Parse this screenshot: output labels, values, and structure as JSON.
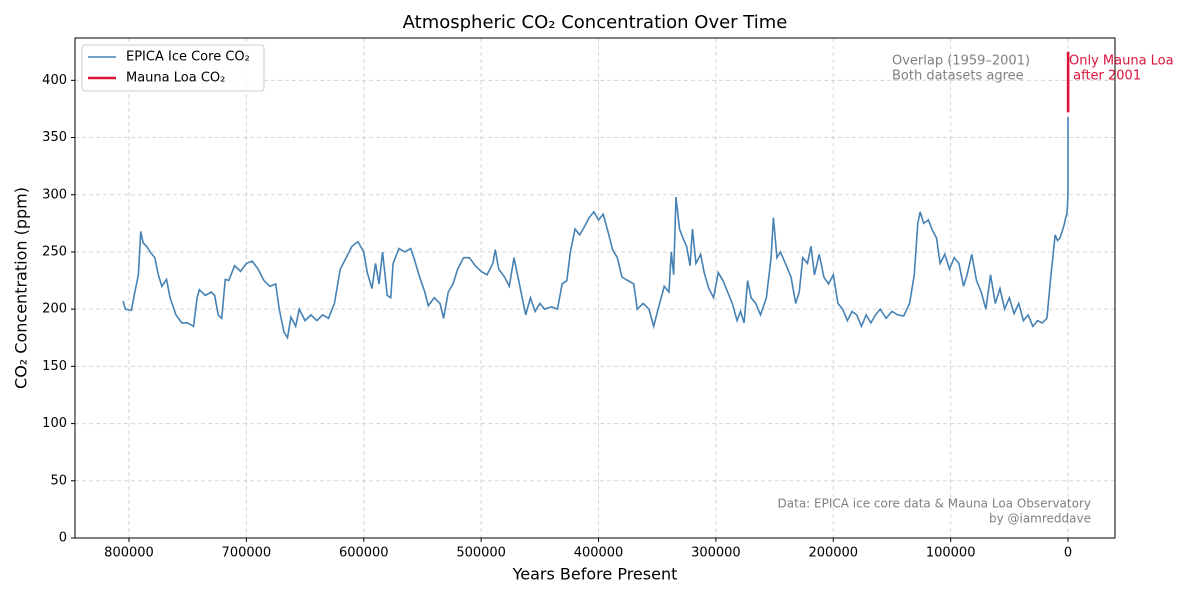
{
  "chart_data": {
    "type": "line",
    "title": "Atmospheric CO₂ Concentration Over Time",
    "x_label": "Years Before Present",
    "y_label": "CO₂ Concentration (ppm)",
    "xlim": [
      846000,
      -40000
    ],
    "ylim": [
      0,
      437
    ],
    "xticks": [
      800000,
      700000,
      600000,
      500000,
      400000,
      300000,
      200000,
      100000,
      0
    ],
    "yticks": [
      0,
      50,
      100,
      150,
      200,
      250,
      300,
      350,
      400
    ],
    "grid": true,
    "legend": "upper left",
    "series": [
      {
        "name": "EPICA Ice Core CO₂",
        "color": "#4682b4",
        "x": [
          805000,
          803000,
          798000,
          795000,
          792000,
          790000,
          788000,
          785000,
          782000,
          778000,
          775000,
          772000,
          768000,
          765000,
          760000,
          755000,
          750000,
          745000,
          742000,
          740000,
          735000,
          730000,
          727000,
          724000,
          721000,
          718000,
          715000,
          710000,
          705000,
          700000,
          695000,
          690000,
          685000,
          680000,
          675000,
          672000,
          668000,
          665000,
          662000,
          658000,
          655000,
          650000,
          645000,
          640000,
          635000,
          630000,
          625000,
          620000,
          615000,
          610000,
          605000,
          600000,
          597000,
          593000,
          590000,
          587000,
          584000,
          580000,
          577000,
          575000,
          570000,
          565000,
          560000,
          557000,
          553000,
          548000,
          545000,
          540000,
          535000,
          532000,
          528000,
          524000,
          520000,
          515000,
          510000,
          505000,
          500000,
          495000,
          490000,
          488000,
          485000,
          480000,
          476000,
          472000,
          468000,
          465000,
          462000,
          458000,
          454000,
          450000,
          446000,
          440000,
          435000,
          431000,
          427000,
          424000,
          420000,
          416000,
          412000,
          408000,
          404000,
          400000,
          396000,
          392000,
          388000,
          384000,
          380000,
          375000,
          370000,
          367000,
          362000,
          357000,
          353000,
          348000,
          344000,
          340000,
          338000,
          336000,
          334000,
          331000,
          328000,
          325000,
          322000,
          320000,
          317000,
          313000,
          310000,
          306000,
          302000,
          298000,
          294000,
          290000,
          286000,
          282000,
          279000,
          276000,
          273000,
          270000,
          266000,
          262000,
          257000,
          253000,
          251000,
          248000,
          245000,
          240000,
          236000,
          232000,
          229000,
          226000,
          222000,
          219000,
          216000,
          212000,
          208000,
          204000,
          200000,
          196000,
          192000,
          188000,
          184000,
          180000,
          176000,
          172000,
          168000,
          164000,
          160000,
          155000,
          150000,
          145000,
          140000,
          135000,
          131000,
          128000,
          126000,
          123000,
          119000,
          116000,
          112000,
          109000,
          105000,
          101000,
          97000,
          93000,
          89000,
          86000,
          82000,
          78000,
          74000,
          70000,
          66000,
          62000,
          58000,
          54000,
          50000,
          46000,
          42000,
          38000,
          34000,
          30000,
          26000,
          22000,
          18000,
          15000,
          13000,
          11000,
          9000,
          7000,
          5000,
          3000,
          2000,
          1000,
          500,
          100,
          50,
          20,
          0
        ],
        "values": [
          207,
          200,
          199,
          215,
          230,
          268,
          258,
          255,
          250,
          245,
          230,
          220,
          226,
          210,
          195,
          188,
          188,
          185,
          210,
          217,
          212,
          215,
          212,
          195,
          192,
          226,
          225,
          238,
          233,
          240,
          242,
          235,
          225,
          220,
          222,
          200,
          180,
          175,
          193,
          185,
          200,
          190,
          195,
          190,
          195,
          192,
          205,
          235,
          245,
          255,
          259,
          250,
          232,
          218,
          240,
          222,
          250,
          212,
          210,
          240,
          253,
          250,
          253,
          244,
          230,
          215,
          203,
          210,
          205,
          192,
          215,
          222,
          235,
          245,
          245,
          238,
          233,
          230,
          240,
          252,
          235,
          228,
          220,
          245,
          225,
          210,
          195,
          210,
          198,
          205,
          200,
          202,
          200,
          222,
          225,
          250,
          270,
          265,
          272,
          280,
          285,
          278,
          283,
          268,
          252,
          245,
          228,
          225,
          222,
          200,
          205,
          200,
          185,
          205,
          220,
          215,
          250,
          230,
          298,
          270,
          262,
          255,
          238,
          270,
          240,
          248,
          232,
          218,
          210,
          232,
          225,
          215,
          205,
          190,
          198,
          188,
          225,
          210,
          205,
          195,
          210,
          245,
          280,
          245,
          250,
          238,
          228,
          205,
          215,
          245,
          240,
          255,
          230,
          248,
          228,
          222,
          230,
          205,
          200,
          190,
          198,
          195,
          185,
          195,
          188,
          195,
          200,
          192,
          198,
          195,
          194,
          205,
          230,
          275,
          285,
          275,
          278,
          270,
          262,
          240,
          248,
          235,
          245,
          240,
          220,
          230,
          248,
          225,
          215,
          200,
          230,
          205,
          218,
          200,
          210,
          196,
          205,
          190,
          195,
          185,
          190,
          188,
          192,
          225,
          245,
          265,
          260,
          262,
          268,
          275,
          280,
          283,
          290,
          300,
          320,
          340,
          368
        ]
      },
      {
        "name": "Mauna Loa CO₂",
        "color": "#dc143c",
        "x": [
          -51,
          -55,
          -60,
          -66,
          -74
        ],
        "values": [
          372,
          381,
          391,
          405,
          425
        ]
      }
    ],
    "annotations": [
      {
        "lines": [
          "Overlap (1959–2001)",
          "Both datasets agree"
        ],
        "color": "#808080"
      },
      {
        "lines": [
          "Only Mauna Loa",
          " after 2001"
        ],
        "color": "#dc143c"
      }
    ],
    "source": [
      "Data: EPICA ice core data & Mauna Loa Observatory",
      "by @iamreddave"
    ]
  }
}
